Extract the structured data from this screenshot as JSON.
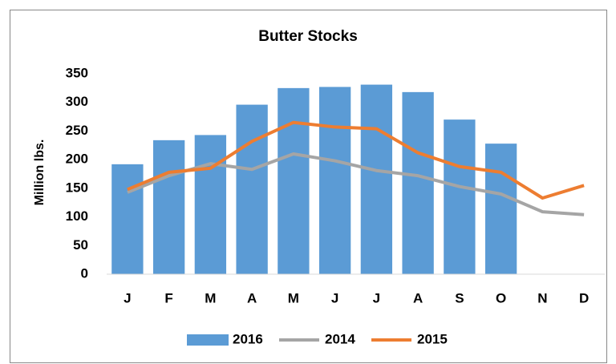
{
  "chart_data": {
    "type": "bar",
    "title": "Butter Stocks",
    "y_label": "Million lbs.",
    "categories": [
      "J",
      "F",
      "M",
      "A",
      "M",
      "J",
      "J",
      "A",
      "S",
      "O",
      "N",
      "D"
    ],
    "series": [
      {
        "name": "2016",
        "type": "bar",
        "color": "#5b9bd5",
        "values": [
          192,
          234,
          243,
          296,
          325,
          327,
          331,
          318,
          270,
          228,
          null,
          null
        ]
      },
      {
        "name": "2014",
        "type": "line",
        "color": "#a5a5a5",
        "values": [
          143,
          172,
          193,
          183,
          210,
          198,
          181,
          172,
          153,
          140,
          109,
          104
        ]
      },
      {
        "name": "2015",
        "type": "line",
        "color": "#ed7d31",
        "values": [
          148,
          178,
          185,
          232,
          265,
          257,
          254,
          212,
          188,
          178,
          133,
          155
        ]
      }
    ],
    "ylim": [
      0,
      350
    ],
    "yticks": [
      0,
      50,
      100,
      150,
      200,
      250,
      300,
      350
    ],
    "grid": false,
    "legend": "bottom"
  }
}
